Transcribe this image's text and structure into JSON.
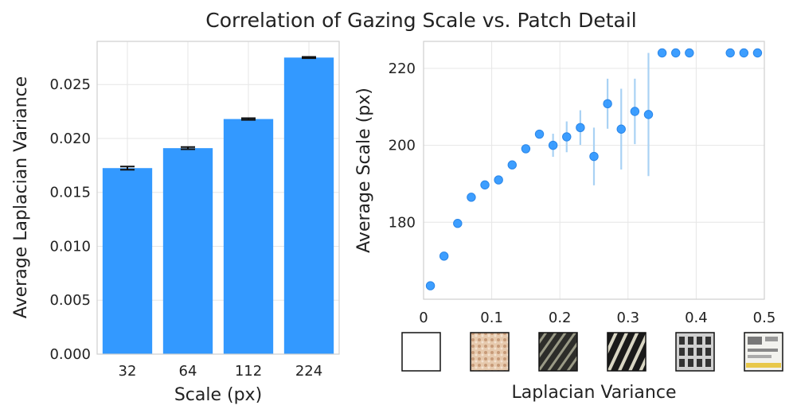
{
  "title": "Correlation of Gazing Scale vs. Patch Detail",
  "colors": {
    "bar": "#3399ff",
    "point": "#3399ff",
    "errorbar_left": "#111111",
    "errorbar_right": "#a9d2f4"
  },
  "chart_data": [
    {
      "type": "bar",
      "categories": [
        "32",
        "64",
        "112",
        "224"
      ],
      "values": [
        0.01725,
        0.0191,
        0.0218,
        0.0275
      ],
      "errors": [
        0.00015,
        0.0001,
        8e-05,
        6e-05
      ],
      "xlabel": "Scale (px)",
      "ylabel": "Average Laplacian Variance",
      "ylim": [
        0,
        0.029
      ],
      "yticks": [
        0,
        0.005,
        0.01,
        0.015,
        0.02,
        0.025
      ],
      "ytick_labels": [
        "0.000",
        "0.005",
        "0.010",
        "0.015",
        "0.020",
        "0.025"
      ],
      "grid": true
    },
    {
      "type": "scatter",
      "x": [
        0.01,
        0.03,
        0.05,
        0.07,
        0.09,
        0.11,
        0.13,
        0.15,
        0.17,
        0.19,
        0.21,
        0.23,
        0.25,
        0.27,
        0.29,
        0.31,
        0.33,
        0.35,
        0.37,
        0.39,
        0.45,
        0.47,
        0.49
      ],
      "y": [
        163.5,
        171.2,
        179.7,
        186.5,
        189.7,
        191.0,
        194.9,
        199.1,
        202.9,
        200.0,
        202.2,
        204.6,
        197.1,
        210.8,
        204.2,
        208.8,
        208.0,
        224.0,
        224.0,
        224.0,
        224.0,
        224.0,
        224.0
      ],
      "err_low": [
        0,
        0,
        0,
        0,
        0,
        0,
        0,
        0,
        0,
        3,
        4,
        4.5,
        7.5,
        6.5,
        10.5,
        8.5,
        16,
        0,
        0,
        0,
        0,
        0,
        0
      ],
      "err_high": [
        0,
        0,
        0,
        0,
        0,
        0,
        0,
        0,
        0,
        3,
        4,
        4.5,
        7.5,
        6.5,
        10.5,
        8.5,
        16,
        0,
        0,
        0,
        0,
        0,
        0
      ],
      "xlabel": "Laplacian Variance",
      "ylabel": "Average Scale (px)",
      "xlim": [
        0,
        0.5
      ],
      "ylim": [
        160,
        227
      ],
      "xticks": [
        0,
        0.1,
        0.2,
        0.3,
        0.4,
        0.5
      ],
      "xtick_labels": [
        "0",
        "0.1",
        "0.2",
        "0.3",
        "0.4",
        "0.5"
      ],
      "yticks": [
        180,
        200,
        220
      ],
      "ytick_labels": [
        "180",
        "200",
        "220"
      ],
      "grid": true,
      "thumbnails": [
        {
          "name": "blank",
          "style": "blank"
        },
        {
          "name": "beige-texture",
          "style": "beige"
        },
        {
          "name": "diagonal-stripes-dark",
          "style": "stripes-dark"
        },
        {
          "name": "diagonal-stripes-light",
          "style": "stripes-light"
        },
        {
          "name": "text-patch",
          "style": "text"
        },
        {
          "name": "document-patch",
          "style": "doc"
        }
      ]
    }
  ]
}
